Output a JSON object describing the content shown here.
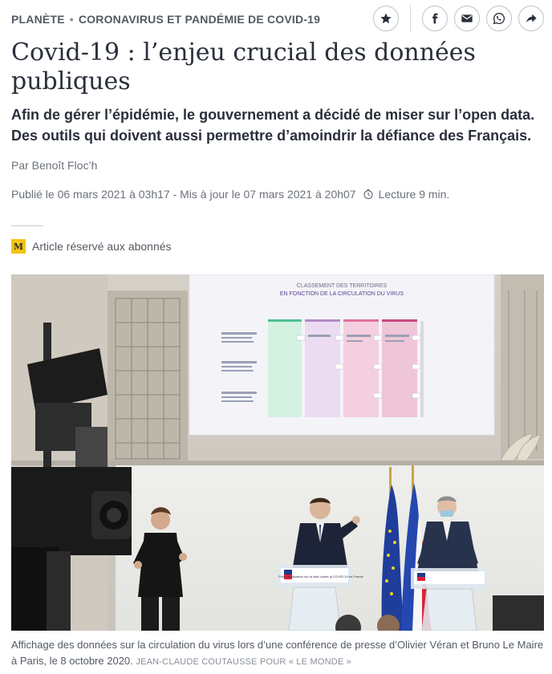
{
  "breadcrumb": {
    "section": "PLANÈTE",
    "separator": "•",
    "topic": "CORONAVIRUS ET PANDÉMIE DE COVID-19"
  },
  "actions": {
    "icons": [
      "star-icon",
      "facebook-icon",
      "email-icon",
      "whatsapp-icon",
      "share-icon"
    ]
  },
  "article": {
    "title": "Covid-19 : l’enjeu crucial des données publiques",
    "description": "Afin de gérer l’épidémie, le gouvernement a décidé de miser sur l’open data. Des outils qui doivent aussi permettre d’amoindrir la défiance des Français.",
    "author": "Par Benoît Floc’h",
    "published": "Publié le 06 mars 2021 à 03h17 - Mis à jour le 07 mars 2021 à 20h07",
    "reading_time": "Lecture 9 min.",
    "premium_label": "Article réservé aux abonnés",
    "premium_badge": "M"
  },
  "photo": {
    "slide_title_line1": "CLASSEMENT DES TERRITOIRES",
    "slide_title_line2": "EN FONCTION DE LA CIRCULATION DU VIRUS",
    "podium_text": "Point de situation sur la lutte contre la COVID-19 en France"
  },
  "caption": {
    "text": "Affichage des données sur la circulation du virus lors d’une conférence de presse d’Olivier Véran et Bruno Le Maire à Paris, le 8 octobre 2020.",
    "credit": "JEAN-CLAUDE COUTAUSSE POUR « LE MONDE »"
  },
  "colors": {
    "accent_yellow": "#f3c313",
    "text_dark": "#2a303b",
    "text_muted": "#6b717a"
  }
}
